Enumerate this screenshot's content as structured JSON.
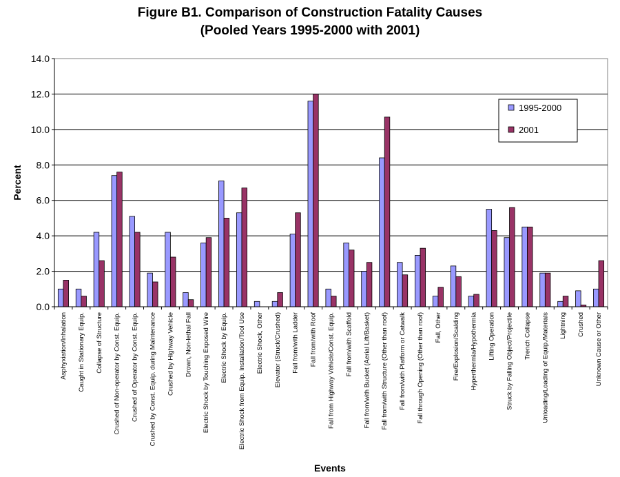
{
  "chart_data": {
    "type": "bar",
    "title": [
      "Figure B1.  Comparison of Construction Fatality Causes",
      "(Pooled Years 1995-2000 with 2001)"
    ],
    "xlabel": "Events",
    "ylabel": "Percent",
    "ylim": [
      0,
      14
    ],
    "yticks": [
      "0.0",
      "2.0",
      "4.0",
      "6.0",
      "8.0",
      "10.0",
      "12.0",
      "14.0"
    ],
    "grid": true,
    "legend_position": "top-right",
    "categories": [
      "Asphyxiation/Inhalation",
      "Caught in Stationary Equip.",
      "Collapse of Structure",
      "Crushed of Non-operator by Const. Equip.",
      "Crushed of Operator by Const. Equip.",
      "Crushed by Const. Equip. during Maintenance",
      "Crushed by Highway Vehicle",
      "Drown, Non-lethal Fall",
      "Electric Shock by Touching Exposed Wire",
      "Electric Shock by Equip.",
      "Electric Shock from Equip. Installation/Tool Use",
      "Electric Shock, Other",
      "Elevator (Struck/Crushed)",
      "Fall from/with Ladder",
      "Fall from/with Roof",
      "Fall from Highway Vehicle/Const. Equip.",
      "Fall from/with Scaffold",
      "Fall from/with Bucket (Aerial Lift/Basket)",
      "Fall from/with Structure (Other than roof)",
      "Fall from/with Platform or Catwalk",
      "Fall through Opening (Other than roof)",
      "Fall, Other",
      "Fire/Explosion/Scalding",
      "Hyperthermia/Hypothermia",
      "Lifting Operation",
      "Struck by Falling Object/Projectile",
      "Trench Collapse",
      "Unloading/Loading of Equip./Materials",
      "Lightning",
      "Crushed",
      "Unknown Cause or Other"
    ],
    "series": [
      {
        "name": "1995-2000",
        "color": "#9999ff",
        "values": [
          1.0,
          1.0,
          4.2,
          7.4,
          5.1,
          1.9,
          4.2,
          0.8,
          3.6,
          7.1,
          5.3,
          0.3,
          0.3,
          4.1,
          11.6,
          1.0,
          3.6,
          2.0,
          8.4,
          2.5,
          2.9,
          0.6,
          2.3,
          0.6,
          5.5,
          3.9,
          4.5,
          1.9,
          0.3,
          0.9,
          1.0
        ]
      },
      {
        "name": "2001",
        "color": "#993366",
        "values": [
          1.5,
          0.6,
          2.6,
          7.6,
          4.2,
          1.4,
          2.8,
          0.4,
          3.9,
          5.0,
          6.7,
          0.0,
          0.8,
          5.3,
          12.0,
          0.6,
          3.2,
          2.5,
          10.7,
          1.8,
          3.3,
          1.1,
          1.7,
          0.7,
          4.3,
          5.6,
          4.5,
          1.9,
          0.6,
          0.1,
          2.6
        ]
      }
    ]
  }
}
